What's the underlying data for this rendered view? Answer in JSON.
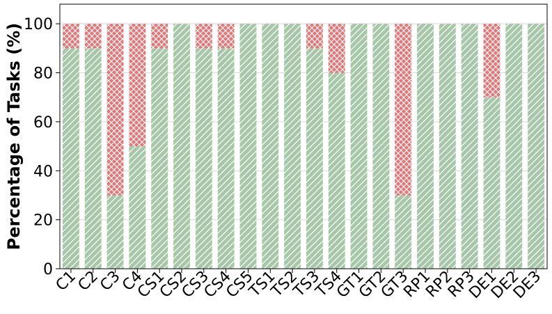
{
  "chart_data": {
    "type": "bar",
    "stacked": true,
    "title": "",
    "xlabel": "",
    "ylabel": "Percentage of Tasks (%)",
    "ylim": [
      0,
      108
    ],
    "yticks": [
      0,
      20,
      40,
      60,
      80,
      100
    ],
    "grid": "horizontal",
    "legend": "none",
    "categories": [
      "C1",
      "C2",
      "C3",
      "C4",
      "CS1",
      "CS2",
      "CS3",
      "CS4",
      "CS5",
      "TS1",
      "TS2",
      "TS3",
      "TS4",
      "GT1",
      "GT2",
      "GT3",
      "RP1",
      "RP2",
      "RP3",
      "DE1",
      "DE2",
      "DE3"
    ],
    "series": [
      {
        "values": [
          90,
          90,
          30,
          50,
          90,
          100,
          90,
          90,
          100,
          100,
          100,
          90,
          80,
          100,
          100,
          30,
          100,
          100,
          100,
          70,
          100,
          100
        ],
        "color": "#a6c8a8",
        "pattern": "diagonal-hatch"
      },
      {
        "values": [
          10,
          10,
          70,
          50,
          10,
          0,
          10,
          10,
          0,
          0,
          0,
          10,
          20,
          0,
          0,
          70,
          0,
          0,
          0,
          30,
          0,
          0
        ],
        "color": "#e47676",
        "pattern": "cross-hatch"
      }
    ]
  }
}
